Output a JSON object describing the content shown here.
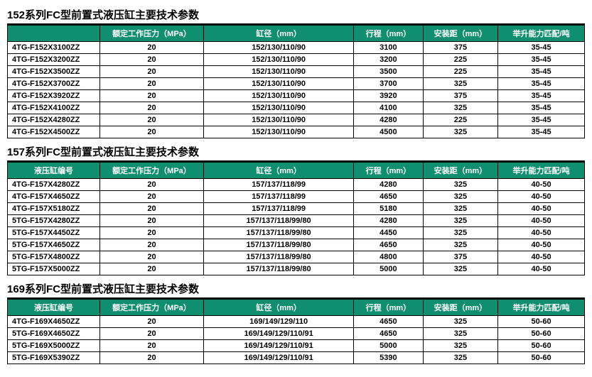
{
  "colors": {
    "header_bg": "#0f8f6f",
    "header_fg": "#ffffff",
    "row_bg": "#ffffff",
    "row_fg": "#000000",
    "border": "#000000"
  },
  "typography": {
    "title_fontsize": 15,
    "cell_fontsize": 11,
    "font_family": "Microsoft YaHei"
  },
  "columns": {
    "model": "液压缸编号",
    "pressure": "额定工作压力（MPa）",
    "bore": "缸径（mm）",
    "stroke": "行程（mm）",
    "install": "安装距（mm）",
    "capacity": "举升能力匹配/吨"
  },
  "col_widths": {
    "model": "16%",
    "pressure": "18%",
    "bore": "26%",
    "stroke": "12%",
    "install": "13%",
    "capacity": "15%"
  },
  "sections": [
    {
      "title": "152系列FC型前置式液压缸主要技术参数",
      "show_model_header": false,
      "rows": [
        {
          "model": "4TG-F152X3100ZZ",
          "pressure": "20",
          "bore": "152/130/110/90",
          "stroke": "3100",
          "install": "375",
          "capacity": "35-45"
        },
        {
          "model": "4TG-F152X3200ZZ",
          "pressure": "20",
          "bore": "152/130/110/90",
          "stroke": "3200",
          "install": "225",
          "capacity": "35-45"
        },
        {
          "model": "4TG-F152X3500ZZ",
          "pressure": "20",
          "bore": "152/130/110/90",
          "stroke": "3500",
          "install": "225",
          "capacity": "35-45"
        },
        {
          "model": "4TG-F152X3700ZZ",
          "pressure": "20",
          "bore": "152/130/110/90",
          "stroke": "3700",
          "install": "325",
          "capacity": "35-45"
        },
        {
          "model": "4TG-F152X3920ZZ",
          "pressure": "20",
          "bore": "152/130/110/90",
          "stroke": "3920",
          "install": "375",
          "capacity": "35-45"
        },
        {
          "model": "4TG-F152X4100ZZ",
          "pressure": "20",
          "bore": "152/130/110/90",
          "stroke": "4100",
          "install": "325",
          "capacity": "35-45"
        },
        {
          "model": "4TG-F152X4280ZZ",
          "pressure": "20",
          "bore": "152/130/110/90",
          "stroke": "4280",
          "install": "225",
          "capacity": "35-45"
        },
        {
          "model": "4TG-F152X4500ZZ",
          "pressure": "20",
          "bore": "152/130/110/90",
          "stroke": "4500",
          "install": "325",
          "capacity": "35-45"
        }
      ]
    },
    {
      "title": "157系列FC型前置式液压缸主要技术参数",
      "show_model_header": true,
      "rows": [
        {
          "model": "4TG-F157X4280ZZ",
          "pressure": "20",
          "bore": "157/137/118/99",
          "stroke": "4280",
          "install": "325",
          "capacity": "40-50"
        },
        {
          "model": "4TG-F157X4650ZZ",
          "pressure": "20",
          "bore": "157/137/118/99",
          "stroke": "4650",
          "install": "325",
          "capacity": "40-50"
        },
        {
          "model": "4TG-F157X5180ZZ",
          "pressure": "20",
          "bore": "157/137/118/99",
          "stroke": "5180",
          "install": "325",
          "capacity": "40-50"
        },
        {
          "model": "5TG-F157X4280ZZ",
          "pressure": "20",
          "bore": "157/137/118/99/80",
          "stroke": "4280",
          "install": "325",
          "capacity": "40-50"
        },
        {
          "model": "5TG-F157X4450ZZ",
          "pressure": "20",
          "bore": "157/137/118/99/80",
          "stroke": "4450",
          "install": "325",
          "capacity": "40-50"
        },
        {
          "model": "5TG-F157X4650ZZ",
          "pressure": "20",
          "bore": "157/137/118/99/80",
          "stroke": "4650",
          "install": "325",
          "capacity": "40-50"
        },
        {
          "model": "5TG-F157X4800ZZ",
          "pressure": "20",
          "bore": "157/137/118/99/80",
          "stroke": "4800",
          "install": "375",
          "capacity": "40-50"
        },
        {
          "model": "5TG-F157X5000ZZ",
          "pressure": "20",
          "bore": "157/137/118/99/80",
          "stroke": "5000",
          "install": "325",
          "capacity": "40-50"
        }
      ]
    },
    {
      "title": "169系列FC型前置式液压缸主要技术参数",
      "show_model_header": true,
      "rows": [
        {
          "model": "4TG-F169X4650ZZ",
          "pressure": "20",
          "bore": "169/149/129/110",
          "stroke": "4650",
          "install": "325",
          "capacity": "50-60"
        },
        {
          "model": "5TG-F169X4650ZZ",
          "pressure": "20",
          "bore": "169/149/129/110/91",
          "stroke": "4650",
          "install": "325",
          "capacity": "50-60"
        },
        {
          "model": "5TG-F169X5000ZZ",
          "pressure": "20",
          "bore": "169/149/129/110/91",
          "stroke": "5000",
          "install": "325",
          "capacity": "50-60"
        },
        {
          "model": "5TG-F169X5390ZZ",
          "pressure": "20",
          "bore": "169/149/129/110/91",
          "stroke": "5390",
          "install": "325",
          "capacity": "50-60"
        }
      ]
    }
  ]
}
